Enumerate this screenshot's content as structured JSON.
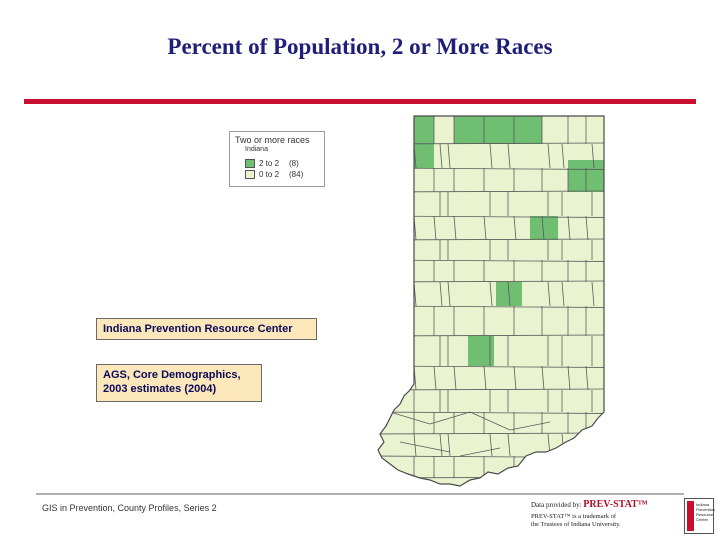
{
  "title": "Percent of Population, 2 or More Races",
  "legend": {
    "title": "Two or more races",
    "subtitle": "Indiana",
    "classes": [
      {
        "label": "2 to 2",
        "count": "(8)",
        "color": "#6fbe72"
      },
      {
        "label": "0 to 2",
        "count": "(84)",
        "color": "#eaf3d0"
      }
    ]
  },
  "colors": {
    "high": "#6fbe72",
    "low": "#eaf3d0",
    "border": "#5a5a5a",
    "accent": "#c8102e"
  },
  "info_boxes": [
    {
      "lines": [
        "Indiana Prevention Resource Center"
      ]
    },
    {
      "lines": [
        "AGS, Core Demographics,",
        "2003 estimates (2004)"
      ]
    }
  ],
  "footer": {
    "left": "GIS in Prevention, County Profiles, Series 2",
    "credit_prefix": "Data provided by:",
    "credit_brand": "PREV-STAT™",
    "credit_line2": "PREV-STAT™ is a trademark of",
    "credit_line3": "the Trustees of Indiana University.",
    "logo_lines": [
      "Indiana",
      "Prevention",
      "Resource",
      "Center"
    ]
  }
}
